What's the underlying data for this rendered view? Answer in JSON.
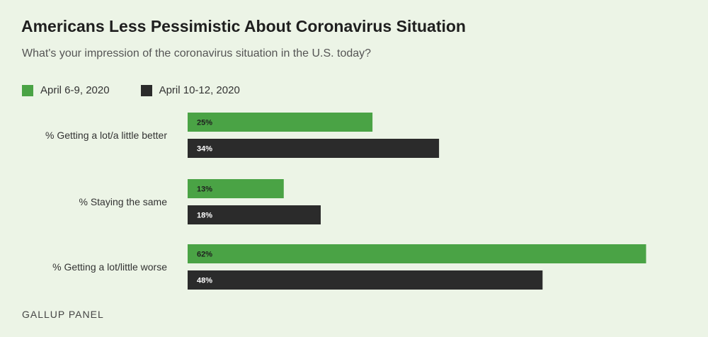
{
  "chart_data": {
    "type": "bar",
    "orientation": "horizontal",
    "title": "Americans Less Pessimistic About Coronavirus Situation",
    "subtitle": "What's your impression of the coronavirus situation in the U.S. today?",
    "categories": [
      "% Getting a lot/a little better",
      "% Staying the same",
      "% Getting a lot/little worse"
    ],
    "series": [
      {
        "name": "April 6-9, 2020",
        "color": "#4aa345",
        "label_color": "#1f1f1f",
        "values": [
          25,
          13,
          62
        ]
      },
      {
        "name": "April 10-12, 2020",
        "color": "#2b2b2b",
        "label_color": "#ffffff",
        "values": [
          34,
          18,
          48
        ]
      }
    ],
    "data_labels": [
      [
        "25%",
        "13%",
        "62%"
      ],
      [
        "34%",
        "18%",
        "48%"
      ]
    ],
    "xlim": [
      0,
      72
    ],
    "grid": false,
    "legend_position": "top-left"
  },
  "source": "GALLUP PANEL"
}
